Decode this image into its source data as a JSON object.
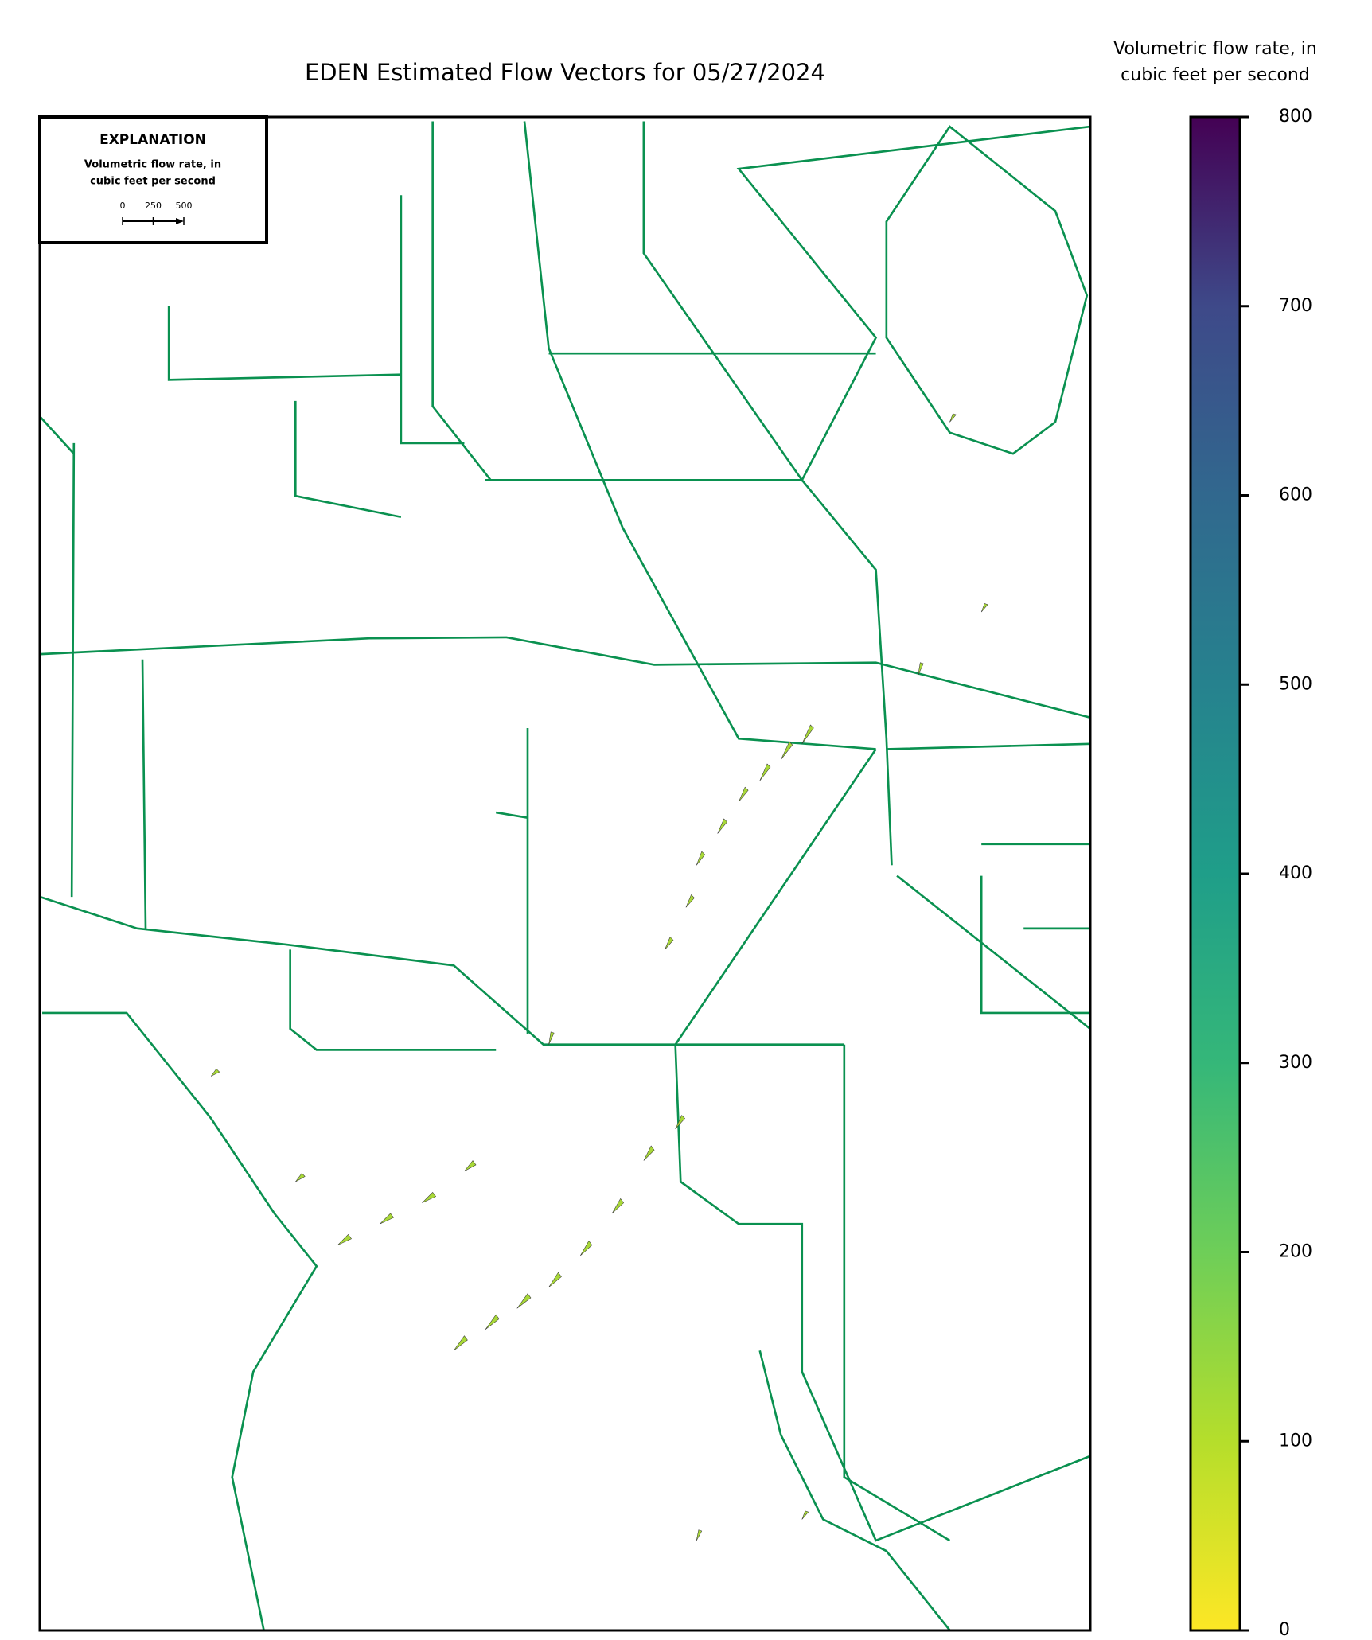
{
  "title": "EDEN Estimated Flow Vectors for 05/27/2024",
  "explanation": {
    "heading": "EXPLANATION",
    "label": [
      "Volumetric flow rate, in",
      "cubic feet per second"
    ],
    "scale_ticks": [
      0,
      250,
      500
    ]
  },
  "colorbar": {
    "label": [
      "Volumetric flow rate, in",
      "cubic feet per second"
    ],
    "lim": [
      0,
      800
    ],
    "ticks": [
      0,
      100,
      200,
      300,
      400,
      500,
      600,
      700,
      800
    ],
    "colors": [
      "#fde725",
      "#440154"
    ]
  }
}
